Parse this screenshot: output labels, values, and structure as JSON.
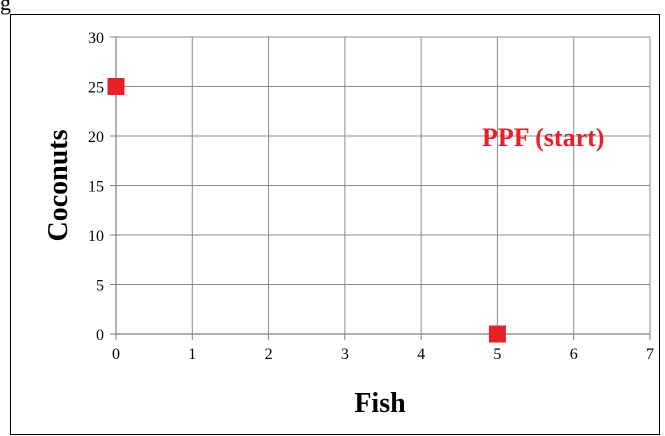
{
  "page": {
    "top_left_text": "g"
  },
  "chart_data": {
    "type": "scatter",
    "title": "",
    "xlabel": "Fish",
    "ylabel": "Coconuts",
    "xlim": [
      0,
      7
    ],
    "ylim": [
      0,
      30
    ],
    "x_ticks": [
      "0",
      "1",
      "2",
      "3",
      "4",
      "5",
      "6",
      "7"
    ],
    "y_ticks": [
      "0",
      "5",
      "10",
      "15",
      "20",
      "25",
      "30"
    ],
    "grid": true,
    "series": [
      {
        "x": [
          0,
          5
        ],
        "y": [
          25,
          0
        ],
        "color": "#e8202a",
        "marker": "square"
      }
    ],
    "annotations": [
      {
        "text": "PPF (start)",
        "x": 5.6,
        "y": 19.9,
        "color": "#e8202a"
      }
    ]
  }
}
